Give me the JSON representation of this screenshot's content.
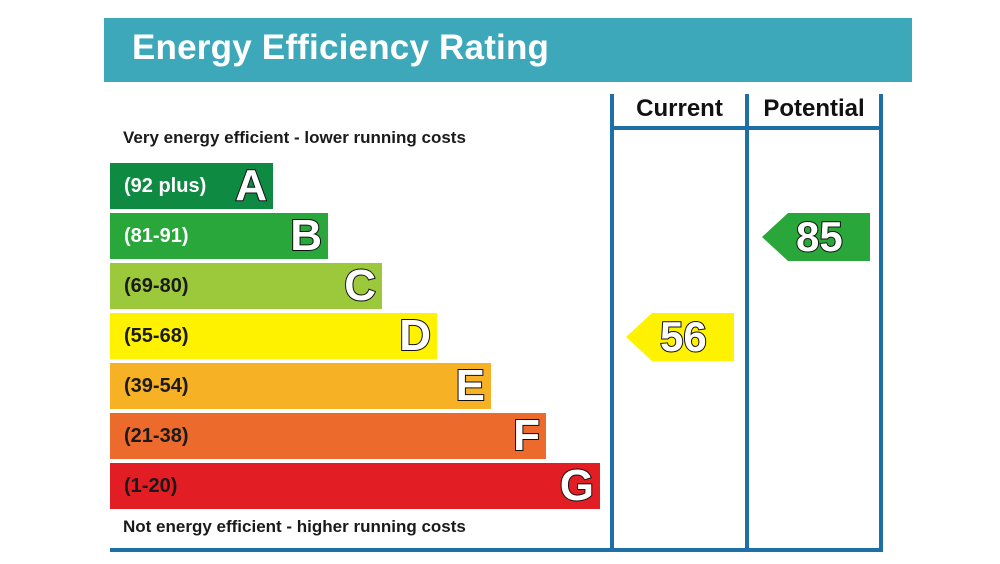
{
  "chart_data": {
    "type": "bar",
    "title": "Energy Efficiency Rating",
    "top_note": "Very energy efficient - lower running costs",
    "bottom_note": "Not energy efficient - higher running costs",
    "columns": [
      "Current",
      "Potential"
    ],
    "bands": [
      {
        "letter": "A",
        "range": "(92 plus)",
        "color": "#0f8a43",
        "text_color": "#ffffff"
      },
      {
        "letter": "B",
        "range": "(81-91)",
        "color": "#2aa73a",
        "text_color": "#ffffff"
      },
      {
        "letter": "C",
        "range": "(69-80)",
        "color": "#9cc93b",
        "text_color": "#1a1a1a"
      },
      {
        "letter": "D",
        "range": "(55-68)",
        "color": "#fff200",
        "text_color": "#1a1a1a"
      },
      {
        "letter": "E",
        "range": "(39-54)",
        "color": "#f7b124",
        "text_color": "#1a1a1a"
      },
      {
        "letter": "F",
        "range": "(21-38)",
        "color": "#ec6a2b",
        "text_color": "#1a1a1a"
      },
      {
        "letter": "G",
        "range": "(1-20)",
        "color": "#e31d24",
        "text_color": "#1a1a1a"
      }
    ],
    "ratings": [
      {
        "column": "Current",
        "value": 56,
        "band": "D",
        "color": "#fff200"
      },
      {
        "column": "Potential",
        "value": 85,
        "band": "B",
        "color": "#2aa73a"
      }
    ]
  }
}
